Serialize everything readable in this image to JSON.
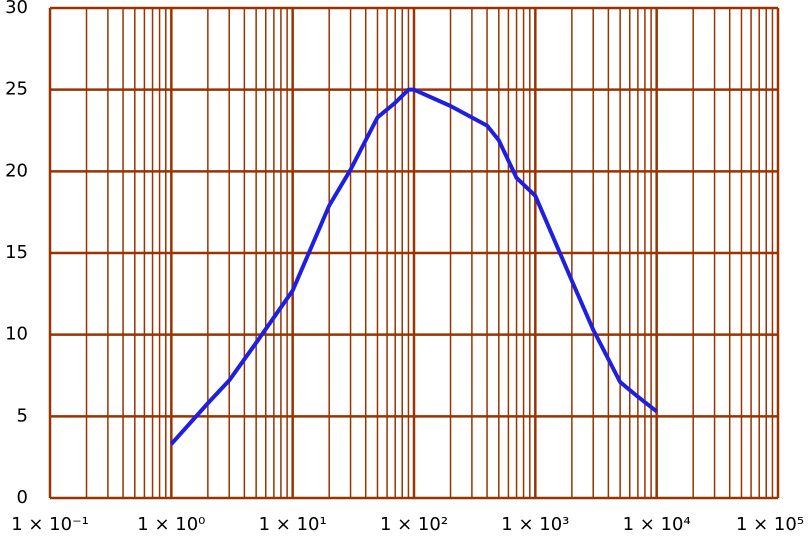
{
  "chart_data": {
    "type": "line",
    "log_x": true,
    "grid": true,
    "minor_grid": true,
    "grid_color": "#993300",
    "x": [
      1,
      2,
      3,
      5,
      10,
      20,
      30,
      50,
      70,
      90,
      100,
      200,
      400,
      500,
      700,
      1000,
      2000,
      3000,
      5000,
      7000,
      10000
    ],
    "series": [
      {
        "color": "#1f1fe0",
        "values": [
          3.3,
          5.8,
          7.2,
          9.5,
          12.7,
          17.9,
          20.1,
          23.3,
          24.2,
          25,
          25,
          24,
          22.8,
          21.9,
          19.6,
          18.5,
          13.3,
          10.3,
          7.1,
          6.2,
          5.3
        ]
      }
    ],
    "xlim": [
      0.1,
      100000
    ],
    "xticks": [
      {
        "value": 0.1,
        "label": "1 × 10⁻¹"
      },
      {
        "value": 1,
        "label": "1 × 10⁰"
      },
      {
        "value": 10,
        "label": "1 × 10¹"
      },
      {
        "value": 100,
        "label": "1 × 10²"
      },
      {
        "value": 1000,
        "label": "1 × 10³"
      },
      {
        "value": 10000,
        "label": "1 × 10⁴"
      },
      {
        "value": 100000,
        "label": "1 × 10⁵"
      }
    ],
    "ylim": [
      0,
      30
    ],
    "yticks": [
      0,
      5,
      10,
      15,
      20,
      25,
      30
    ]
  }
}
